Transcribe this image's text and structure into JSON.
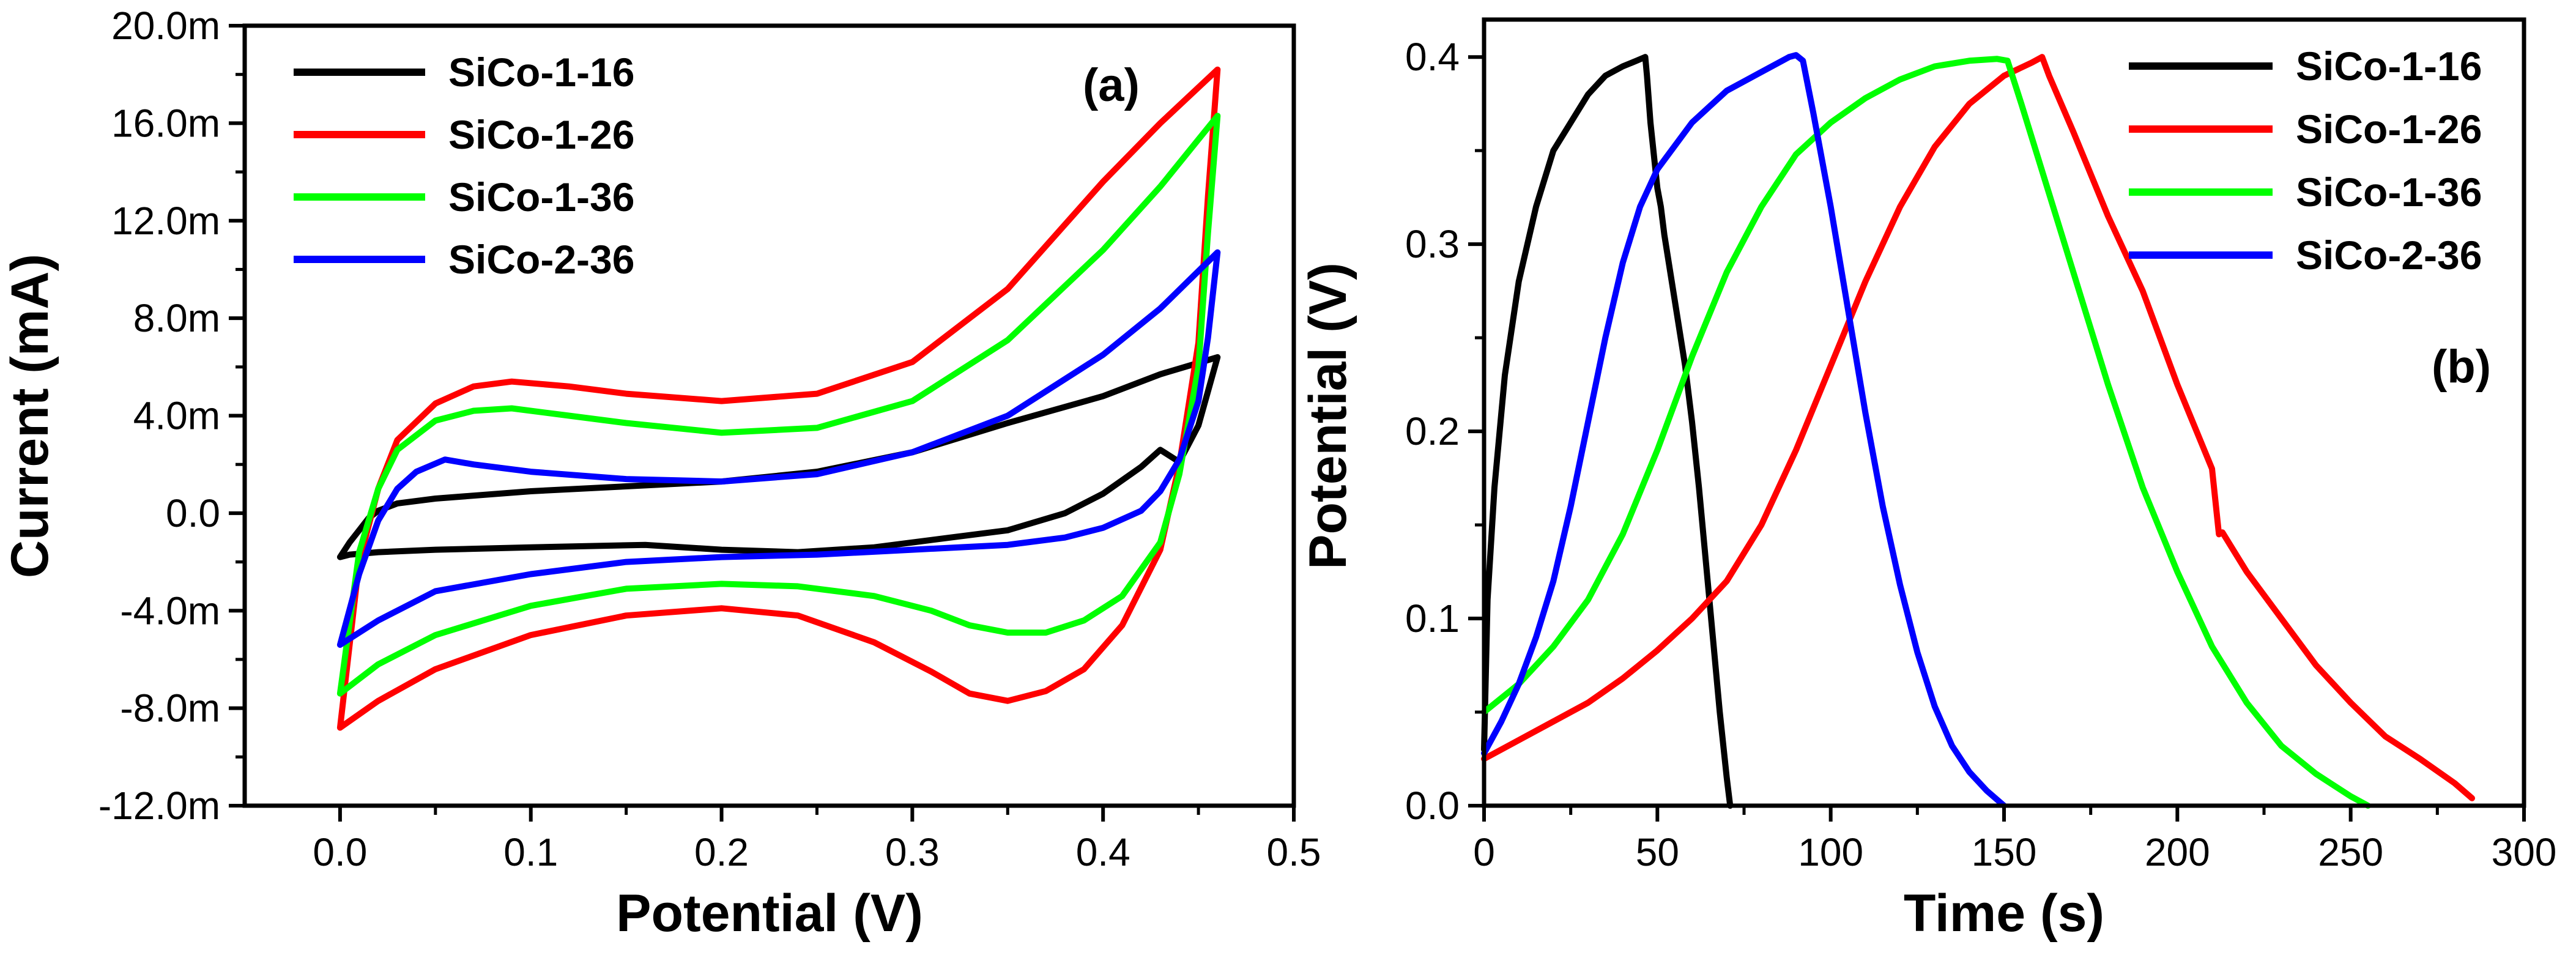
{
  "chart_data": [
    {
      "panel": "(a)",
      "type": "line",
      "title": "",
      "xlabel": "Potential (V)",
      "ylabel": "Current (mA)",
      "xlim": [
        -0.05,
        0.5
      ],
      "ylim": [
        -12.0,
        20.0
      ],
      "xticks": [
        0.0,
        0.1,
        0.2,
        0.3,
        0.4,
        0.5
      ],
      "xtick_labels": [
        "0.0",
        "0.1",
        "0.2",
        "0.3",
        "0.4",
        "0.5"
      ],
      "yticks": [
        -12,
        -8,
        -4,
        0,
        4,
        8,
        12,
        16,
        20
      ],
      "ytick_labels": [
        "-12.0m",
        "-8.0m",
        "-4.0m",
        "0.0",
        "4.0m",
        "8.0m",
        "12.0m",
        "16.0m",
        "20.0m"
      ],
      "legend_position": "top-left",
      "series": [
        {
          "name": "SiCo-1-16",
          "color": "#000000",
          "x": [
            0.0,
            0.005,
            0.01,
            0.015,
            0.02,
            0.03,
            0.05,
            0.1,
            0.15,
            0.2,
            0.25,
            0.3,
            0.35,
            0.4,
            0.43,
            0.46,
            0.45,
            0.44,
            0.43,
            0.42,
            0.4,
            0.38,
            0.35,
            0.32,
            0.28,
            0.24,
            0.2,
            0.16,
            0.1,
            0.05,
            0.02,
            0.005,
            0.0
          ],
          "y": [
            -1.8,
            -1.2,
            -0.7,
            -0.2,
            0.1,
            0.4,
            0.6,
            0.9,
            1.1,
            1.3,
            1.7,
            2.5,
            3.7,
            4.8,
            5.7,
            6.4,
            3.6,
            2.1,
            2.6,
            1.9,
            0.8,
            0.0,
            -0.7,
            -1.0,
            -1.4,
            -1.6,
            -1.5,
            -1.3,
            -1.4,
            -1.5,
            -1.6,
            -1.7,
            -1.8
          ]
        },
        {
          "name": "SiCo-1-26",
          "color": "#ff0000",
          "x": [
            0.0,
            0.01,
            0.02,
            0.03,
            0.05,
            0.07,
            0.09,
            0.12,
            0.15,
            0.2,
            0.25,
            0.3,
            0.35,
            0.4,
            0.43,
            0.46,
            0.455,
            0.45,
            0.44,
            0.43,
            0.41,
            0.39,
            0.37,
            0.35,
            0.33,
            0.31,
            0.28,
            0.24,
            0.2,
            0.15,
            0.1,
            0.05,
            0.02,
            0.0
          ],
          "y": [
            -8.8,
            -2.0,
            1.0,
            3.0,
            4.5,
            5.2,
            5.4,
            5.2,
            4.9,
            4.6,
            4.9,
            6.2,
            9.2,
            13.6,
            16.0,
            18.2,
            13.0,
            7.0,
            2.0,
            -1.5,
            -4.6,
            -6.4,
            -7.3,
            -7.7,
            -7.4,
            -6.5,
            -5.3,
            -4.2,
            -3.9,
            -4.2,
            -5.0,
            -6.4,
            -7.7,
            -8.8
          ]
        },
        {
          "name": "SiCo-1-36",
          "color": "#00ff00",
          "x": [
            0.0,
            0.01,
            0.02,
            0.03,
            0.05,
            0.07,
            0.09,
            0.12,
            0.15,
            0.2,
            0.25,
            0.3,
            0.35,
            0.4,
            0.43,
            0.46,
            0.455,
            0.45,
            0.44,
            0.43,
            0.41,
            0.39,
            0.37,
            0.35,
            0.33,
            0.31,
            0.28,
            0.24,
            0.2,
            0.15,
            0.1,
            0.05,
            0.02,
            0.0
          ],
          "y": [
            -7.4,
            -1.6,
            1.0,
            2.6,
            3.8,
            4.2,
            4.3,
            4.0,
            3.7,
            3.3,
            3.5,
            4.6,
            7.1,
            10.8,
            13.4,
            16.3,
            11.5,
            6.0,
            1.6,
            -1.2,
            -3.4,
            -4.4,
            -4.9,
            -4.9,
            -4.6,
            -4.0,
            -3.4,
            -3.0,
            -2.9,
            -3.1,
            -3.8,
            -5.0,
            -6.2,
            -7.4
          ]
        },
        {
          "name": "SiCo-2-36",
          "color": "#0000ff",
          "x": [
            0.0,
            0.01,
            0.02,
            0.03,
            0.04,
            0.055,
            0.07,
            0.1,
            0.15,
            0.2,
            0.25,
            0.3,
            0.35,
            0.4,
            0.43,
            0.46,
            0.455,
            0.45,
            0.44,
            0.43,
            0.42,
            0.4,
            0.38,
            0.35,
            0.3,
            0.25,
            0.2,
            0.15,
            0.1,
            0.05,
            0.02,
            0.0
          ],
          "y": [
            -5.4,
            -2.5,
            -0.3,
            1.0,
            1.7,
            2.2,
            2.0,
            1.7,
            1.4,
            1.3,
            1.6,
            2.5,
            4.0,
            6.5,
            8.4,
            10.7,
            7.2,
            4.6,
            2.2,
            0.9,
            0.1,
            -0.6,
            -1.0,
            -1.3,
            -1.5,
            -1.7,
            -1.8,
            -2.0,
            -2.5,
            -3.2,
            -4.4,
            -5.4
          ]
        }
      ]
    },
    {
      "panel": "(b)",
      "type": "line",
      "title": "",
      "xlabel": "Time (s)",
      "ylabel": "Potential (V)",
      "xlim": [
        0,
        300
      ],
      "ylim": [
        0.0,
        0.42
      ],
      "xticks": [
        0,
        50,
        100,
        150,
        200,
        250,
        300
      ],
      "xtick_labels": [
        "0",
        "50",
        "100",
        "150",
        "200",
        "250",
        "300"
      ],
      "yticks": [
        0.0,
        0.1,
        0.2,
        0.3,
        0.4
      ],
      "ytick_labels": [
        "0.0",
        "0.1",
        "0.2",
        "0.3",
        "0.4"
      ],
      "legend_position": "top-right",
      "series": [
        {
          "name": "SiCo-1-16",
          "color": "#000000",
          "x": [
            0,
            1,
            3,
            6,
            10,
            15,
            20,
            25,
            30,
            35,
            40,
            44,
            46.5,
            47,
            48,
            50,
            51,
            52,
            55,
            58,
            60,
            62,
            64,
            66,
            68,
            70,
            71
          ],
          "y": [
            0.03,
            0.11,
            0.17,
            0.23,
            0.28,
            0.32,
            0.35,
            0.365,
            0.38,
            0.39,
            0.395,
            0.398,
            0.4,
            0.39,
            0.365,
            0.33,
            0.32,
            0.305,
            0.27,
            0.235,
            0.205,
            0.17,
            0.13,
            0.09,
            0.05,
            0.015,
            0.0
          ]
        },
        {
          "name": "SiCo-1-26",
          "color": "#ff0000",
          "x": [
            0,
            10,
            20,
            30,
            40,
            50,
            60,
            70,
            80,
            90,
            100,
            110,
            120,
            130,
            140,
            150,
            158,
            161,
            163,
            170,
            180,
            190,
            200,
            210,
            212,
            213,
            220,
            230,
            240,
            250,
            260,
            270,
            280,
            285
          ],
          "y": [
            0.025,
            0.035,
            0.045,
            0.055,
            0.068,
            0.083,
            0.1,
            0.12,
            0.15,
            0.19,
            0.235,
            0.28,
            0.32,
            0.352,
            0.375,
            0.39,
            0.397,
            0.4,
            0.39,
            0.36,
            0.315,
            0.275,
            0.225,
            0.18,
            0.145,
            0.146,
            0.125,
            0.1,
            0.075,
            0.055,
            0.037,
            0.025,
            0.012,
            0.004
          ]
        },
        {
          "name": "SiCo-1-36",
          "color": "#00ff00",
          "x": [
            0,
            10,
            20,
            30,
            40,
            50,
            60,
            70,
            80,
            90,
            100,
            110,
            120,
            130,
            140,
            148,
            151,
            155,
            160,
            170,
            180,
            190,
            200,
            210,
            220,
            230,
            240,
            250,
            255
          ],
          "y": [
            0.05,
            0.065,
            0.085,
            0.11,
            0.145,
            0.19,
            0.24,
            0.285,
            0.32,
            0.348,
            0.365,
            0.378,
            0.388,
            0.395,
            0.398,
            0.399,
            0.398,
            0.375,
            0.345,
            0.285,
            0.225,
            0.17,
            0.125,
            0.085,
            0.055,
            0.032,
            0.017,
            0.005,
            0.0
          ]
        },
        {
          "name": "SiCo-2-36",
          "color": "#0000ff",
          "x": [
            0,
            5,
            10,
            15,
            20,
            25,
            30,
            35,
            40,
            45,
            50,
            60,
            70,
            80,
            88,
            90,
            92,
            95,
            100,
            105,
            110,
            115,
            120,
            125,
            130,
            135,
            140,
            145,
            150
          ],
          "y": [
            0.028,
            0.045,
            0.065,
            0.09,
            0.12,
            0.16,
            0.205,
            0.25,
            0.29,
            0.32,
            0.34,
            0.365,
            0.382,
            0.392,
            0.4,
            0.401,
            0.398,
            0.37,
            0.32,
            0.265,
            0.21,
            0.16,
            0.118,
            0.082,
            0.053,
            0.032,
            0.018,
            0.008,
            0.0
          ]
        }
      ]
    }
  ]
}
